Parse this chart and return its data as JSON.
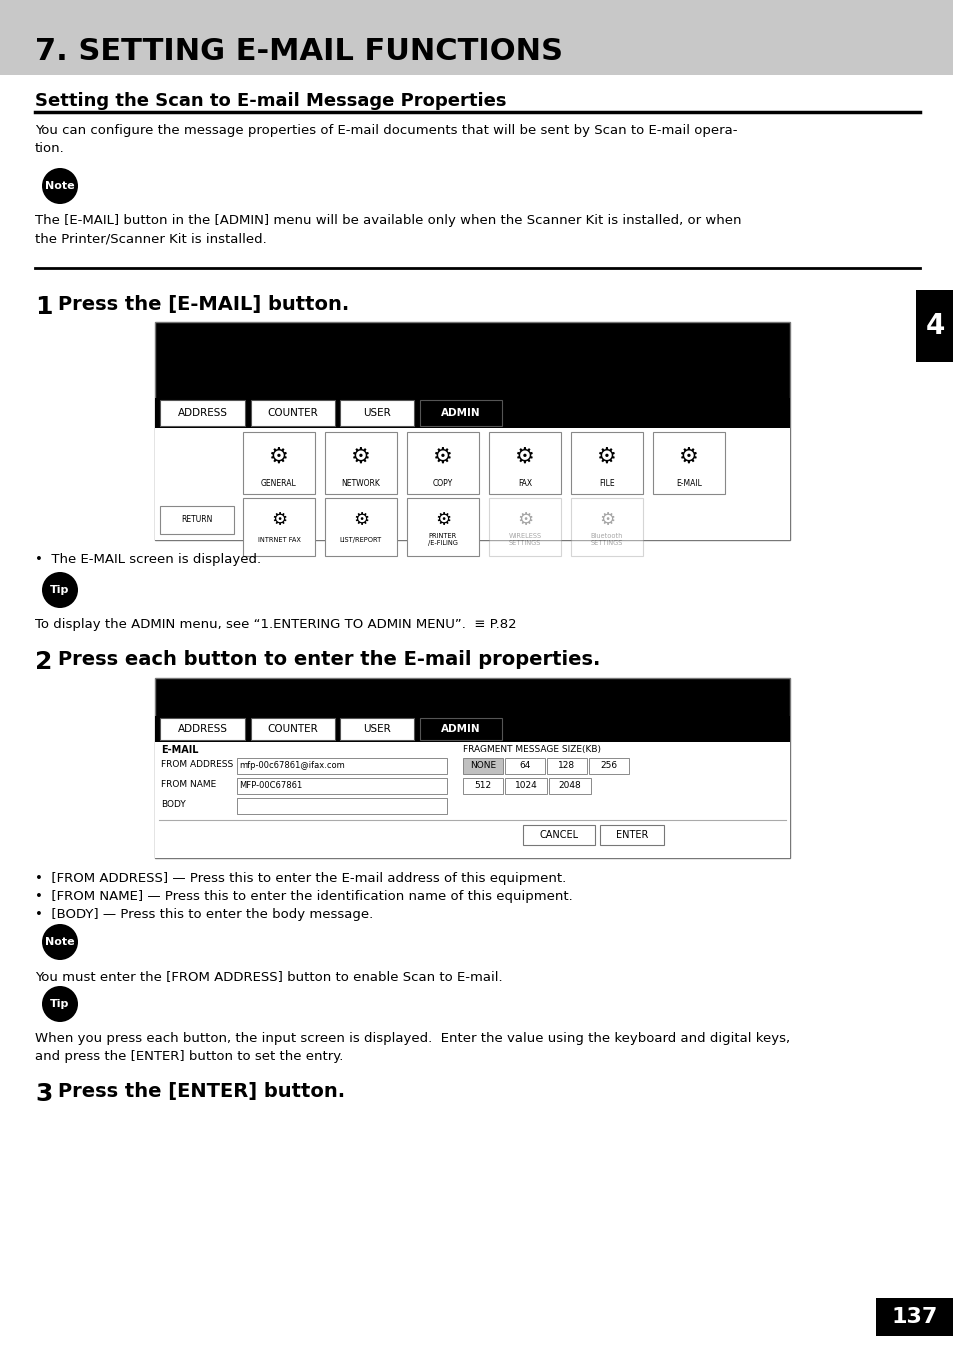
{
  "page_bg": "#ffffff",
  "header_bg": "#c8c8c8",
  "header_title": "7. SETTING E-MAIL FUNCTIONS",
  "header_title_size": 21,
  "section_title": "Setting the Scan to E-mail Message Properties",
  "section_title_size": 13,
  "body_text1_line1": "You can configure the message properties of E-mail documents that will be sent by Scan to E-mail opera-",
  "body_text1_line2": "tion.",
  "note_text1_line1": "The [E-MAIL] button in the [ADMIN] menu will be available only when the Scanner Kit is installed, or when",
  "note_text1_line2": "the Printer/Scanner Kit is installed.",
  "step1_title": "Press the [E-MAIL] button.",
  "step1_bullet": "The E-MAIL screen is displayed.",
  "tip_text1": "To display the ADMIN menu, see “1.ENTERING TO ADMIN MENU”.  ≡ P.82",
  "step2_title": "Press each button to enter the E-mail properties.",
  "step2_bullet1": "•  [FROM ADDRESS] — Press this to enter the E-mail address of this equipment.",
  "step2_bullet2": "•  [FROM NAME] — Press this to enter the identification name of this equipment.",
  "step2_bullet3": "•  [BODY] — Press this to enter the body message.",
  "note_text2": "You must enter the [FROM ADDRESS] button to enable Scan to E-mail.",
  "tip_text2_line1": "When you press each button, the input screen is displayed.  Enter the value using the keyboard and digital keys,",
  "tip_text2_line2": "and press the [ENTER] button to set the entry.",
  "step3_title": "Press the [ENTER] button.",
  "tab_label": "4",
  "page_number": "137",
  "text_color": "#000000",
  "tabs": [
    "ADDRESS",
    "COUNTER",
    "USER",
    "ADMIN"
  ],
  "icon_labels_row1": [
    "GENERAL",
    "NETWORK",
    "COPY",
    "FAX",
    "FILE",
    "E-MAIL"
  ],
  "icon_labels_row2": [
    "INTRNET FAX",
    "LIST/REPORT",
    "PRINTER\n/E-FILING",
    "WIRELESS\nSETTINGS",
    "Bluetooth\nSETTINGS"
  ],
  "frag_row1": [
    "NONE",
    "64",
    "128",
    "256"
  ],
  "frag_row2": [
    "512",
    "1024",
    "2048"
  ],
  "screen1_from_address": "mfp-00c67861@ifax.com",
  "screen1_from_name": "MFP-00C67861"
}
